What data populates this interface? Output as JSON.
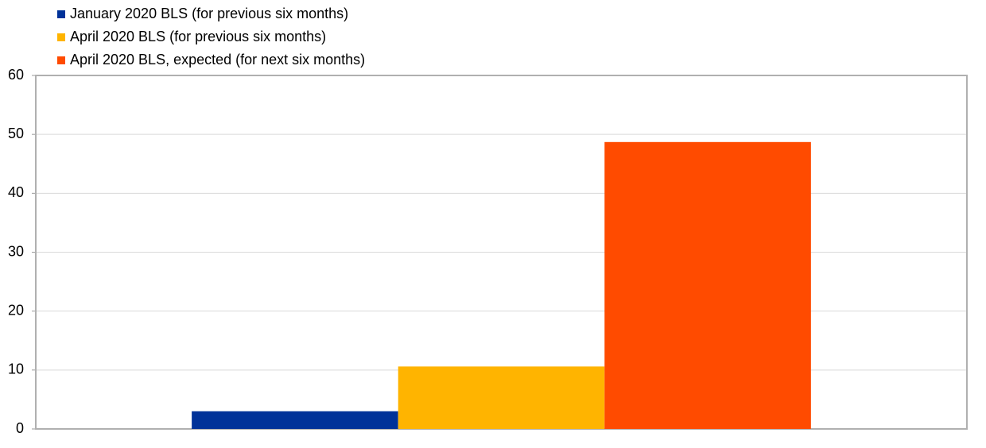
{
  "chart_data": {
    "type": "bar",
    "categories": [
      null
    ],
    "series": [
      {
        "name": "January 2020 BLS (for previous six months)",
        "color": "#003299",
        "values": [
          3.0
        ]
      },
      {
        "name": "April 2020 BLS (for previous six months)",
        "color": "#ffb400",
        "values": [
          10.6
        ]
      },
      {
        "name": "April 2020 BLS, expected (for next six months)",
        "color": "#ff4b00",
        "values": [
          48.7
        ]
      }
    ],
    "ylim": [
      0,
      60
    ],
    "yticks": [
      0,
      10,
      20,
      30,
      40,
      50,
      60
    ],
    "grid": true,
    "legend": "top-left"
  }
}
